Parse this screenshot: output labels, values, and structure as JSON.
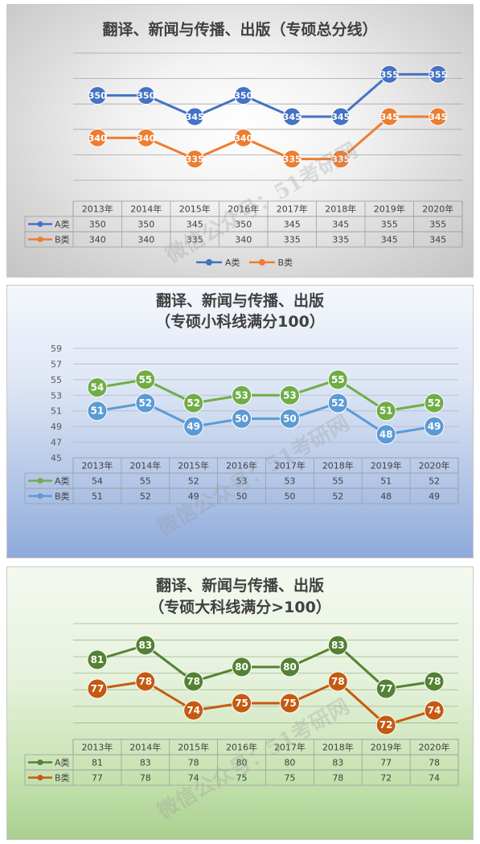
{
  "chart_data": [
    {
      "type": "line",
      "title": "翻译、新闻与传播、出版（专硕总分线）",
      "categories": [
        "2013年",
        "2014年",
        "2015年",
        "2016年",
        "2017年",
        "2018年",
        "2019年",
        "2020年"
      ],
      "series": [
        {
          "name": "A类",
          "values": [
            350,
            350,
            345,
            350,
            345,
            345,
            355,
            355
          ],
          "color": "#4472c4"
        },
        {
          "name": "B类",
          "values": [
            340,
            340,
            335,
            340,
            335,
            335,
            345,
            345
          ],
          "color": "#ed7d31"
        }
      ],
      "ylim": [
        330,
        360
      ],
      "yticks": [],
      "grid": true,
      "data_table": true,
      "legend": "bottom",
      "watermark": "微信公众号：51考研网"
    },
    {
      "type": "line",
      "title": [
        "翻译、新闻与传播、出版",
        "（专硕小科线满分100）"
      ],
      "categories": [
        "2013年",
        "2014年",
        "2015年",
        "2016年",
        "2017年",
        "2018年",
        "2019年",
        "2020年"
      ],
      "series": [
        {
          "name": "A类",
          "values": [
            54,
            55,
            52,
            53,
            53,
            55,
            51,
            52
          ],
          "color": "#70ad47"
        },
        {
          "name": "B类",
          "values": [
            51,
            52,
            49,
            50,
            50,
            52,
            48,
            49
          ],
          "color": "#5b9bd5"
        }
      ],
      "ylim": [
        45,
        59
      ],
      "yticks": [
        "45",
        "47",
        "49",
        "51",
        "53",
        "55",
        "57",
        "59"
      ],
      "grid": true,
      "data_table": true,
      "legend": "none",
      "watermark": "微信公众号：51考研网"
    },
    {
      "type": "line",
      "title": [
        "翻译、新闻与传播、出版",
        "（专硕大科线满分>100）"
      ],
      "categories": [
        "2013年",
        "2014年",
        "2015年",
        "2016年",
        "2017年",
        "2018年",
        "2019年",
        "2020年"
      ],
      "series": [
        {
          "name": "A类",
          "values": [
            81,
            83,
            78,
            80,
            80,
            83,
            77,
            78
          ],
          "color": "#548235"
        },
        {
          "name": "B类",
          "values": [
            77,
            78,
            74,
            75,
            75,
            78,
            72,
            74
          ],
          "color": "#c55a11"
        }
      ],
      "ylim": [
        70,
        86
      ],
      "yticks": [],
      "grid": true,
      "data_table": true,
      "legend": "none",
      "watermark": "微信公众号：51考研网"
    }
  ]
}
